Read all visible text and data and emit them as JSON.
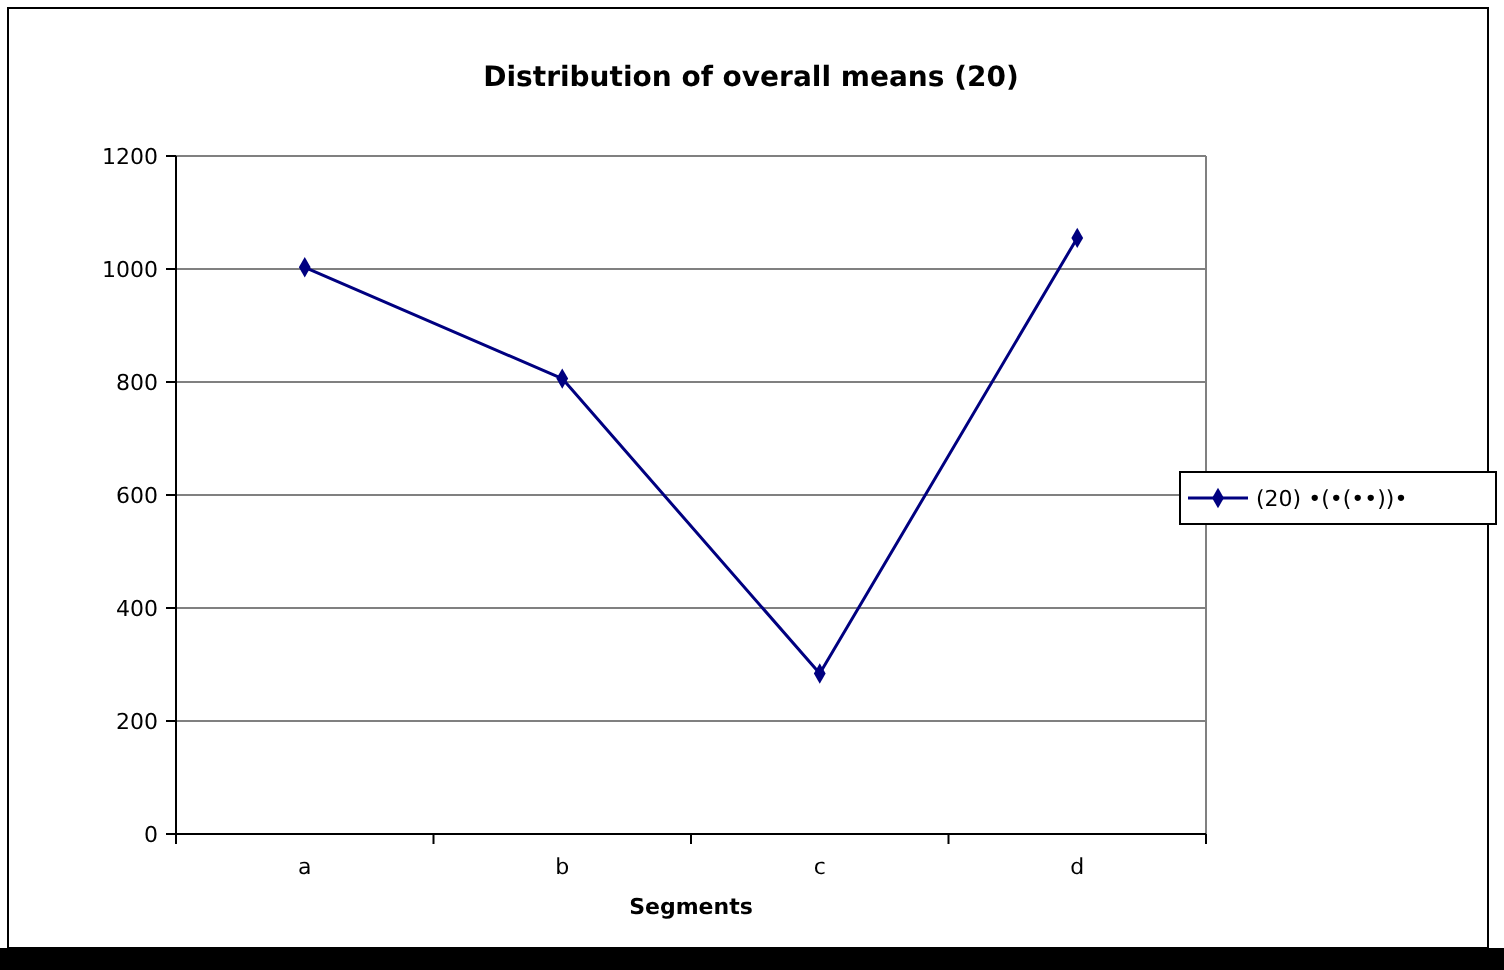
{
  "chart_data": {
    "type": "line",
    "title": "Distribution of overall means (20)",
    "xlabel": "Segments",
    "categories": [
      "a",
      "b",
      "c",
      "d"
    ],
    "series": [
      {
        "name": "(20) •(•(••))•",
        "color": "#000080",
        "values": [
          1003,
          806,
          284,
          1055
        ]
      }
    ],
    "ylim": [
      0,
      1200
    ],
    "yticks": [
      0,
      200,
      400,
      600,
      800,
      1000,
      1200
    ],
    "grid": "y",
    "legend": "right",
    "marker": "diamond",
    "line_style": "solid"
  }
}
